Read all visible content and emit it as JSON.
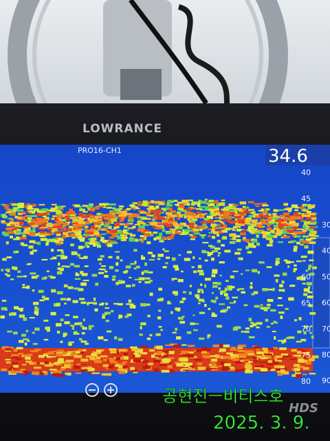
{
  "header": {
    "brand": "LOWRANCE",
    "channel": "PRO16-CH1",
    "depth": "34.6"
  },
  "depth_scale": [
    40,
    45,
    60,
    65,
    70,
    75,
    80
  ],
  "depth_scale_y": null,
  "right_scale": [
    30,
    40,
    50,
    60,
    70,
    80,
    90
  ],
  "overlay": {
    "name": "공현진ㅡ비티스호",
    "date": "2025. 3. 9."
  },
  "badge": "HDS"
}
